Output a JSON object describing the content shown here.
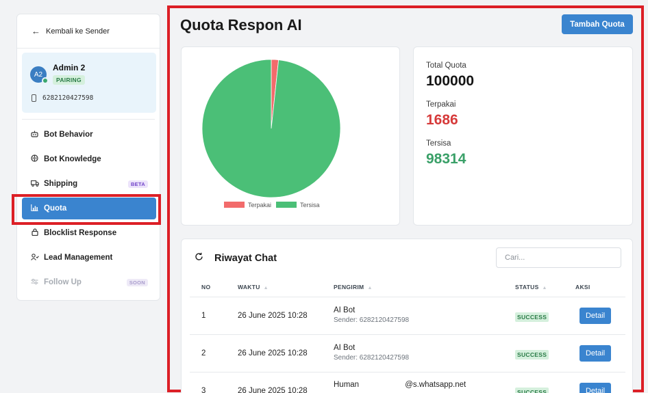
{
  "sidebar": {
    "back_label": "Kembali ke Sender",
    "profile": {
      "initials": "A2",
      "name": "Admin 2",
      "badge": "PAIRING",
      "phone": "6282120427598"
    },
    "items": [
      {
        "label": "Bot Behavior",
        "icon": "robot-icon"
      },
      {
        "label": "Bot Knowledge",
        "icon": "brain-icon"
      },
      {
        "label": "Shipping",
        "icon": "truck-icon",
        "tag": "BETA"
      },
      {
        "label": "Quota",
        "icon": "bar-chart-icon",
        "active": true
      },
      {
        "label": "Blocklist Response",
        "icon": "lock-icon"
      },
      {
        "label": "Lead Management",
        "icon": "user-check-icon"
      },
      {
        "label": "Follow Up",
        "icon": "sliders-icon",
        "tag": "SOON",
        "disabled": true
      }
    ]
  },
  "header": {
    "title": "Quota Respon AI",
    "add_button": "Tambah Quota"
  },
  "stats": {
    "total_label": "Total Quota",
    "total_value": "100000",
    "used_label": "Terpakai",
    "used_value": "1686",
    "remaining_label": "Tersisa",
    "remaining_value": "98314"
  },
  "chart_data": {
    "type": "pie",
    "categories": [
      "Terpakai",
      "Tersisa"
    ],
    "values": [
      1686,
      98314
    ],
    "colors": [
      "#f26b6b",
      "#4bbf77"
    ],
    "legend": "bottom"
  },
  "history": {
    "title": "Riwayat Chat",
    "search_placeholder": "Cari...",
    "columns": [
      "NO",
      "WAKTU",
      "PENGIRIM",
      "STATUS",
      "AKSI"
    ],
    "rows": [
      {
        "no": "1",
        "time": "26 June 2025 10:28",
        "sender": "AI Bot",
        "sub": "Sender: 6282120427598",
        "status": "SUCCESS",
        "action": "Detail"
      },
      {
        "no": "2",
        "time": "26 June 2025 10:28",
        "sender": "AI Bot",
        "sub": "Sender: 6282120427598",
        "status": "SUCCESS",
        "action": "Detail"
      },
      {
        "no": "3",
        "time": "26 June 2025 10:28",
        "sender": "Human",
        "sender_suffix": "@s.whatsapp.net",
        "status": "SUCCESS",
        "action": "Detail"
      }
    ]
  }
}
